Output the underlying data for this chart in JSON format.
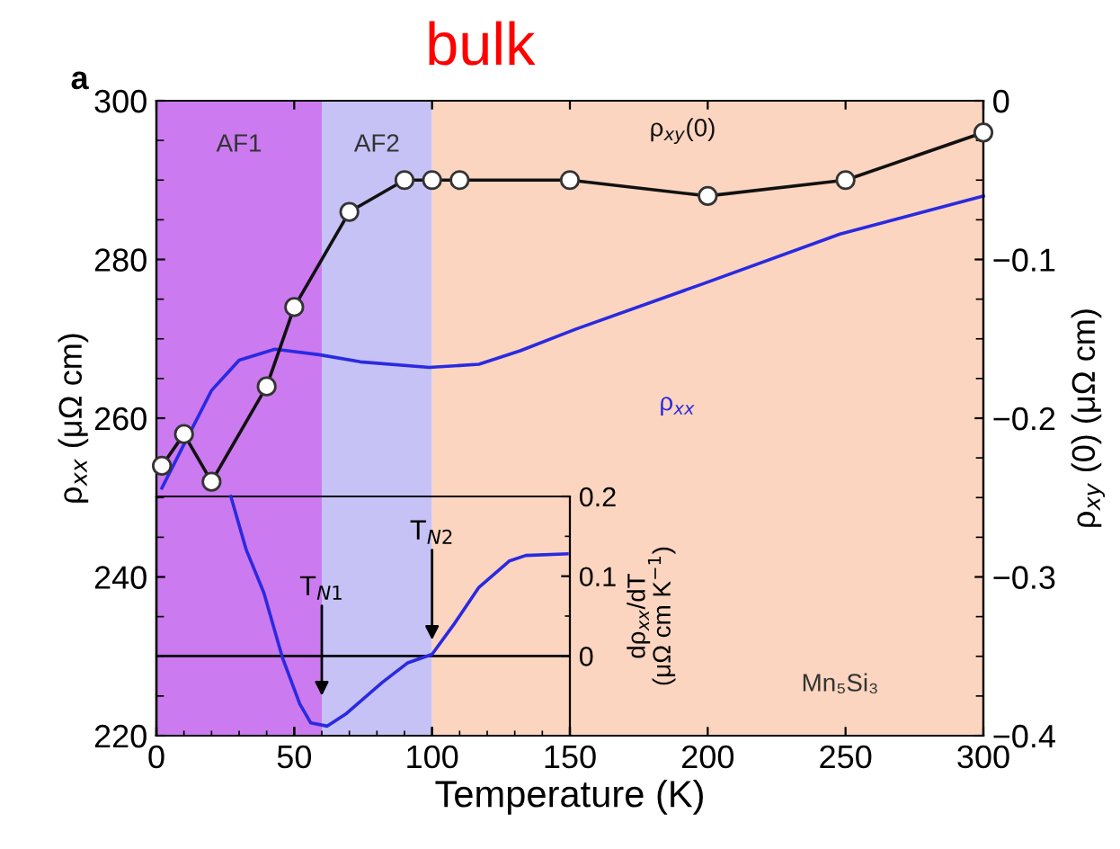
{
  "chart_data": [
    {
      "type": "line",
      "title": "bulk",
      "xlabel": "Temperature (K)",
      "ylabel": "ρ$_{xx}$ (μΩ cm)",
      "y2label": "ρ$_{xy}$ (0) (μΩ cm)",
      "xlim": [
        0,
        300
      ],
      "xticks": [
        0,
        50,
        100,
        150,
        200,
        250,
        300
      ],
      "ylim": [
        220,
        300
      ],
      "yticks": [
        220,
        240,
        260,
        280,
        300
      ],
      "y2lim": [
        -0.4,
        0
      ],
      "y2ticks": [
        -0.4,
        -0.3,
        -0.2,
        -0.1,
        0
      ],
      "grid": false,
      "legend": false,
      "bands": [
        {
          "axis": "x",
          "from": 0,
          "to": 60,
          "label": "AF1",
          "color": "#cc7af0"
        },
        {
          "axis": "x",
          "from": 60,
          "to": 100,
          "label": "AF2",
          "color": "#c6c2f6"
        },
        {
          "axis": "x",
          "from": 100,
          "to": 300,
          "label": null,
          "color": "#fbd5c0"
        }
      ],
      "series": [
        {
          "name": "ρ$_{xy}$(0)",
          "color": "#111111",
          "axis": "y2",
          "marker": "circle",
          "x": [
            2,
            10,
            20,
            40,
            50,
            70,
            90,
            100,
            110,
            150,
            200,
            250,
            300
          ],
          "values": [
            -0.23,
            -0.21,
            -0.24,
            -0.18,
            -0.13,
            -0.07,
            -0.05,
            -0.05,
            -0.05,
            -0.05,
            -0.06,
            -0.05,
            -0.02
          ]
        },
        {
          "name": "ρ$_{xx}$",
          "color": "#2a2ae0",
          "axis": "y",
          "marker": "none",
          "x": [
            2,
            10,
            20,
            30,
            43,
            59,
            74,
            99,
            117,
            132,
            152,
            198,
            248,
            300
          ],
          "values": [
            251.2,
            256.7,
            263.5,
            267.3,
            268.7,
            268,
            267.1,
            266.4,
            266.8,
            268.5,
            271.2,
            276.9,
            283.2,
            288
          ]
        }
      ],
      "annotations": [
        "a",
        "Mn₅Si₃"
      ]
    },
    {
      "type": "line",
      "ylabel": "dρ$_{xx}$/dT\n(μΩ cm K$^{−1}$)",
      "xlim": [
        0,
        150
      ],
      "xticks": [
        0,
        50,
        100,
        150
      ],
      "ylim": [
        -0.1,
        0.2
      ],
      "yticks": [
        0,
        0.1,
        0.2
      ],
      "tick_labels": "y",
      "grid": false,
      "ref_lines": [
        {
          "axis": "y",
          "value": 0,
          "label": null,
          "color": "#000000"
        }
      ],
      "series": [
        {
          "color": "#2a2ae0",
          "x": [
            27,
            32.6,
            39,
            45.7,
            52,
            56,
            62,
            69,
            82,
            91,
            100,
            108,
            117,
            128,
            134,
            149
          ],
          "values": [
            0.2,
            0.133,
            0.079,
            -0.002,
            -0.06,
            -0.084,
            -0.088,
            -0.072,
            -0.033,
            -0.009,
            0.002,
            0.04,
            0.086,
            0.119,
            0.126,
            0.128
          ]
        }
      ],
      "annotations": [
        {
          "text": "T$_{N1}$",
          "x": 60,
          "y": -0.05
        },
        {
          "text": "T$_{N2}$",
          "x": 100,
          "y": 0.02
        }
      ]
    }
  ]
}
